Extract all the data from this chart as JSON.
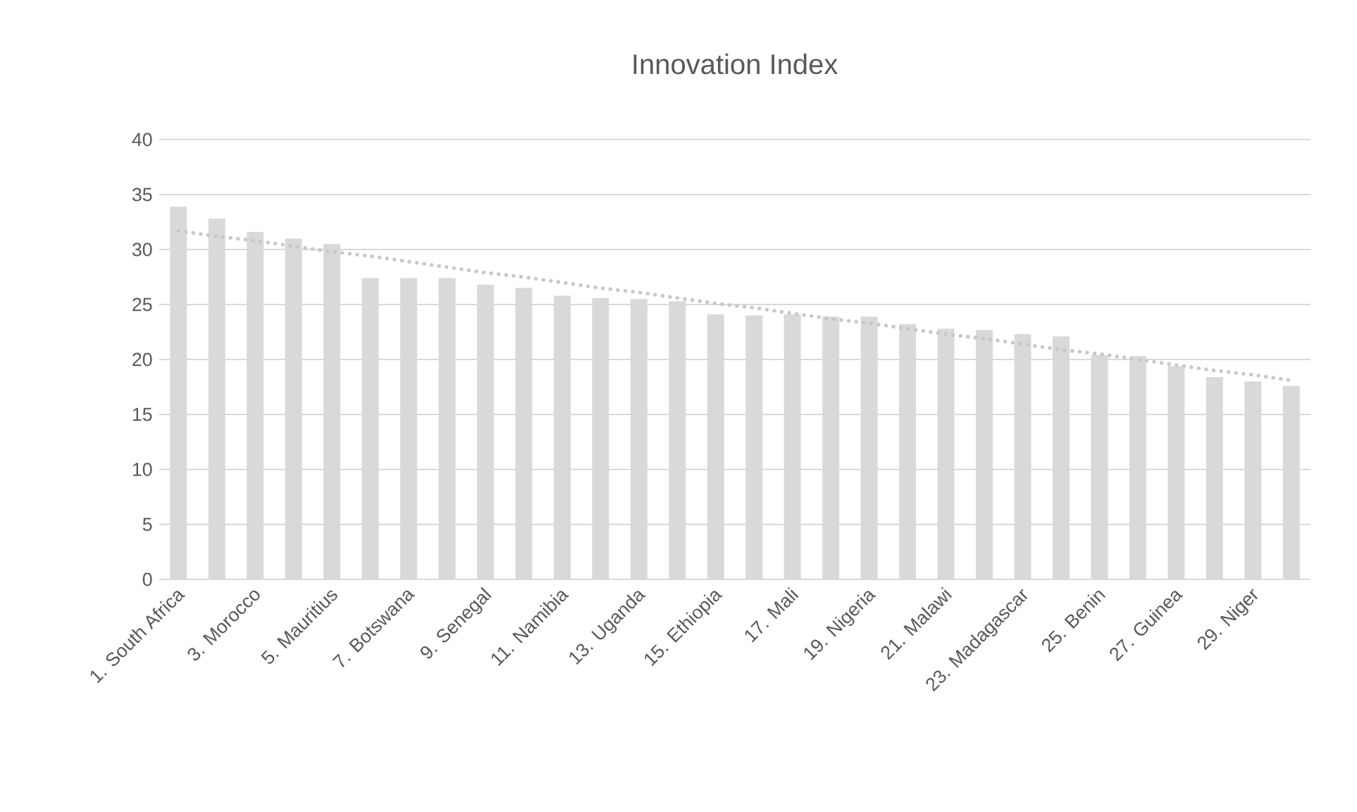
{
  "chart_data": {
    "type": "bar",
    "title": "Innovation Index",
    "categories": [
      "1. South Africa",
      null,
      "3. Morocco",
      null,
      "5. Mauritius",
      null,
      "7. Botswana",
      null,
      "9. Senegal",
      null,
      "11. Namibia",
      null,
      "13. Uganda",
      null,
      "15. Ethiopia",
      null,
      "17. Mali",
      null,
      "19. Nigeria",
      null,
      "21. Malawi",
      null,
      "23. Madagascar",
      null,
      "25. Benin",
      null,
      "27. Guinea",
      null,
      "29. Niger",
      null
    ],
    "series": [
      {
        "color": "#d9d9d9",
        "values": [
          33.9,
          32.8,
          31.6,
          31.0,
          30.5,
          27.4,
          27.4,
          27.4,
          26.8,
          26.5,
          25.8,
          25.6,
          25.5,
          25.3,
          24.1,
          24.0,
          24.1,
          23.9,
          23.9,
          23.2,
          22.8,
          22.7,
          22.3,
          22.1,
          20.4,
          20.3,
          19.4,
          18.4,
          18.0,
          17.6
        ]
      },
      {
        "type": "line",
        "line_style": "dotted",
        "color": "#c8c8c8",
        "values": [
          31.7,
          31.2,
          30.8,
          30.3,
          29.8,
          29.4,
          28.9,
          28.4,
          27.9,
          27.5,
          27.0,
          26.5,
          26.1,
          25.6,
          25.1,
          24.7,
          24.2,
          23.7,
          23.3,
          22.8,
          22.3,
          21.9,
          21.4,
          20.9,
          20.5,
          20.0,
          19.5,
          19.0,
          18.6,
          18.1
        ]
      }
    ],
    "ylim": [
      0,
      40
    ],
    "yticks": [
      0,
      5,
      10,
      15,
      20,
      25,
      30,
      35,
      40
    ],
    "grid": "y"
  }
}
